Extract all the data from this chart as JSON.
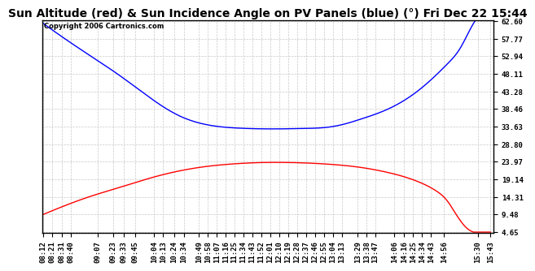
{
  "title": "Sun Altitude (red) & Sun Incidence Angle on PV Panels (blue) (°) Fri Dec 22 15:44",
  "copyright": "Copyright 2006 Cartronics.com",
  "background_color": "#ffffff",
  "plot_bg_color": "#ffffff",
  "grid_color": "#c8c8c8",
  "yticks": [
    4.65,
    9.48,
    14.31,
    19.14,
    23.97,
    28.8,
    33.63,
    38.46,
    43.28,
    48.11,
    52.94,
    57.77,
    62.6
  ],
  "ylim_min": 4.65,
  "ylim_max": 62.6,
  "xtick_labels": [
    "08:12",
    "08:21",
    "08:31",
    "08:40",
    "09:07",
    "09:23",
    "09:33",
    "09:45",
    "10:04",
    "10:13",
    "10:24",
    "10:34",
    "10:49",
    "10:58",
    "11:07",
    "11:16",
    "11:25",
    "11:34",
    "11:43",
    "11:52",
    "12:01",
    "12:10",
    "12:19",
    "12:28",
    "12:37",
    "12:46",
    "12:55",
    "13:04",
    "13:13",
    "13:29",
    "13:38",
    "13:47",
    "14:06",
    "14:16",
    "14:25",
    "14:34",
    "14:43",
    "14:56",
    "15:30",
    "15:43"
  ],
  "blue_color": "#0000ff",
  "red_color": "#ff0000",
  "title_fontsize": 10,
  "tick_fontsize": 6.5
}
